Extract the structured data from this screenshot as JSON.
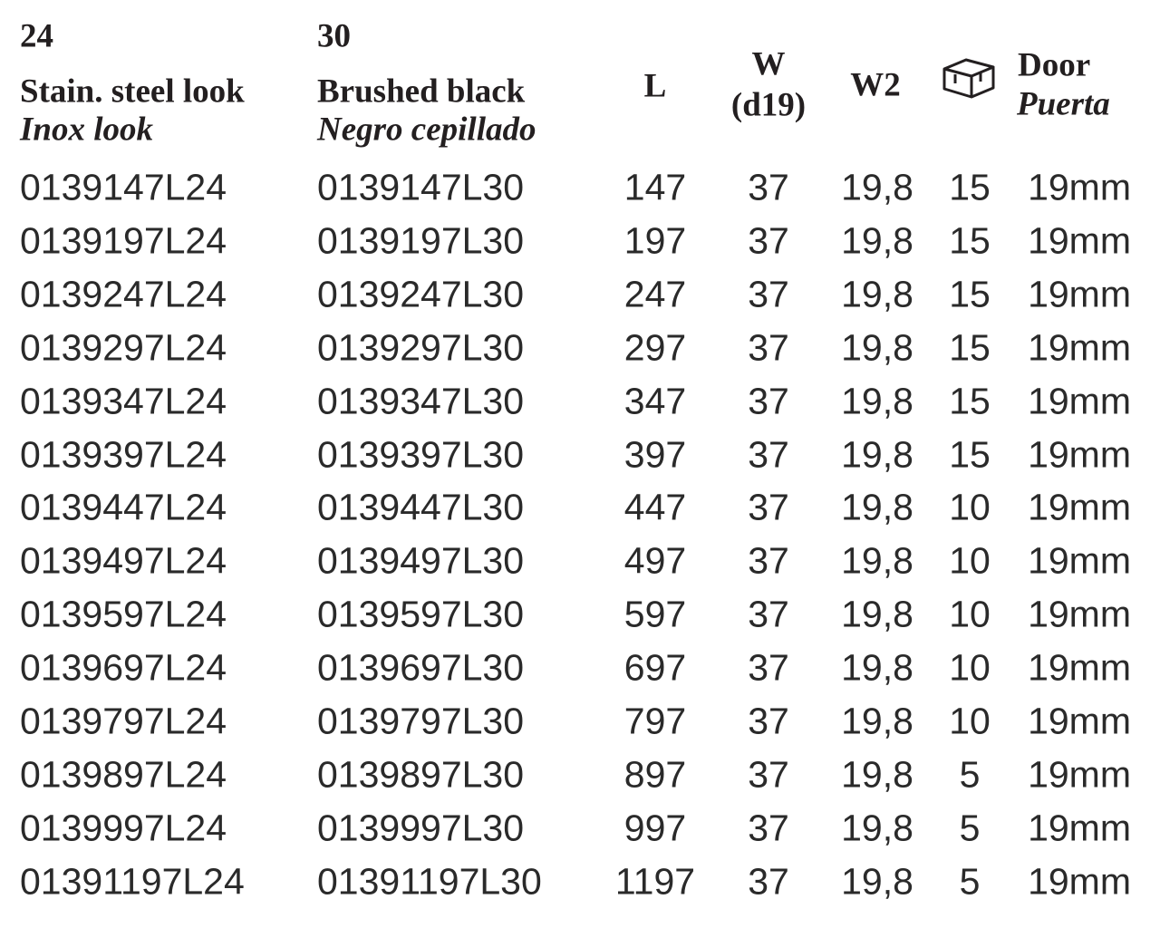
{
  "header": {
    "finish_24": {
      "code": "24",
      "name": "Stain. steel look",
      "name_alt": "Inox look"
    },
    "finish_30": {
      "code": "30",
      "name": "Brushed black",
      "name_alt": "Negro cepillado"
    },
    "length": "L",
    "width": {
      "label": "W",
      "note": "(d19)"
    },
    "width2": "W2",
    "door": {
      "label": "Door",
      "label_alt": "Puerta"
    }
  },
  "table": {
    "rows": [
      [
        "0139147L24",
        "0139147L30",
        "147",
        "37",
        "19,8",
        "15",
        "19mm"
      ],
      [
        "0139197L24",
        "0139197L30",
        "197",
        "37",
        "19,8",
        "15",
        "19mm"
      ],
      [
        "0139247L24",
        "0139247L30",
        "247",
        "37",
        "19,8",
        "15",
        "19mm"
      ],
      [
        "0139297L24",
        "0139297L30",
        "297",
        "37",
        "19,8",
        "15",
        "19mm"
      ],
      [
        "0139347L24",
        "0139347L30",
        "347",
        "37",
        "19,8",
        "15",
        "19mm"
      ],
      [
        "0139397L24",
        "0139397L30",
        "397",
        "37",
        "19,8",
        "15",
        "19mm"
      ],
      [
        "0139447L24",
        "0139447L30",
        "447",
        "37",
        "19,8",
        "10",
        "19mm"
      ],
      [
        "0139497L24",
        "0139497L30",
        "497",
        "37",
        "19,8",
        "10",
        "19mm"
      ],
      [
        "0139597L24",
        "0139597L30",
        "597",
        "37",
        "19,8",
        "10",
        "19mm"
      ],
      [
        "0139697L24",
        "0139697L30",
        "697",
        "37",
        "19,8",
        "10",
        "19mm"
      ],
      [
        "0139797L24",
        "0139797L30",
        "797",
        "37",
        "19,8",
        "10",
        "19mm"
      ],
      [
        "0139897L24",
        "0139897L30",
        "897",
        "37",
        "19,8",
        "5",
        "19mm"
      ],
      [
        "0139997L24",
        "0139997L30",
        "997",
        "37",
        "19,8",
        "5",
        "19mm"
      ],
      [
        "01391197L24",
        "01391197L30",
        "1197",
        "37",
        "19,8",
        "5",
        "19mm"
      ]
    ]
  }
}
